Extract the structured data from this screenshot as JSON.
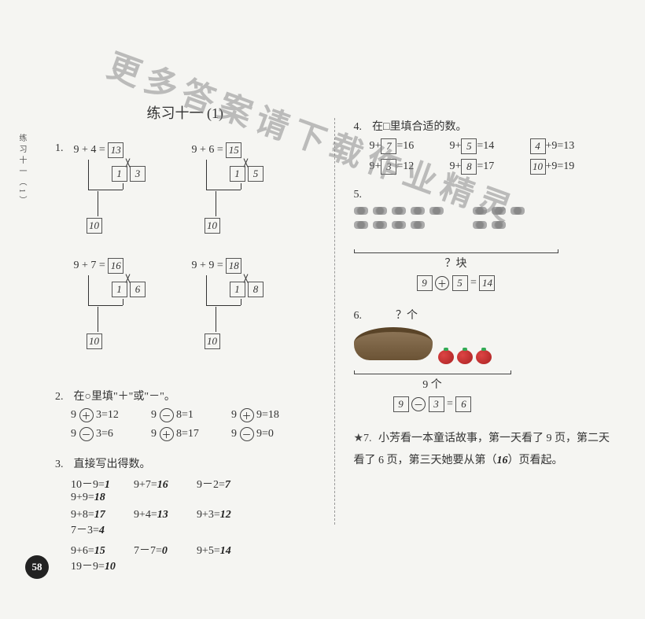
{
  "watermark": "更多答案请下载作业精灵",
  "sideLabel": "练习十一（1）",
  "title": "练习十一 (1)",
  "pageNum": "58",
  "q1": {
    "num": "1.",
    "trees": [
      {
        "expr": "9  +  4 =",
        "result": "13",
        "s1": "1",
        "s2": "3",
        "bot": "10"
      },
      {
        "expr": "9  +  6 =",
        "result": "15",
        "s1": "1",
        "s2": "5",
        "bot": "10"
      },
      {
        "expr": "9  +  7 =",
        "result": "16",
        "s1": "1",
        "s2": "6",
        "bot": "10"
      },
      {
        "expr": "9  +  9 =",
        "result": "18",
        "s1": "1",
        "s2": "8",
        "bot": "10"
      }
    ]
  },
  "q2": {
    "num": "2.",
    "prompt": "在○里填\"＋\"或\"－\"。",
    "rows": [
      [
        {
          "a": "9",
          "op": "＋",
          "b": "3=12"
        },
        {
          "a": "9",
          "op": "－",
          "b": "8=1"
        },
        {
          "a": "9",
          "op": "＋",
          "b": "9=18"
        }
      ],
      [
        {
          "a": "9",
          "op": "－",
          "b": "3=6"
        },
        {
          "a": "9",
          "op": "＋",
          "b": "8=17"
        },
        {
          "a": "9",
          "op": "－",
          "b": "9=0"
        }
      ]
    ]
  },
  "q3": {
    "num": "3.",
    "prompt": "直接写出得数。",
    "rows": [
      [
        {
          "e": "10－9=",
          "a": "1"
        },
        {
          "e": "9+7=",
          "a": "16"
        },
        {
          "e": "9－2=",
          "a": "7"
        },
        {
          "e": "9+9=",
          "a": "18"
        }
      ],
      [
        {
          "e": "9+8=",
          "a": "17"
        },
        {
          "e": "9+4=",
          "a": "13"
        },
        {
          "e": "9+3=",
          "a": "12"
        },
        {
          "e": "7－3=",
          "a": "4"
        }
      ],
      [
        {
          "e": "9+6=",
          "a": "15"
        },
        {
          "e": "7－7=",
          "a": "0"
        },
        {
          "e": "9+5=",
          "a": "14"
        },
        {
          "e": "19－9=",
          "a": "10"
        }
      ]
    ]
  },
  "q4": {
    "num": "4.",
    "prompt": "在□里填合适的数。",
    "rows": [
      [
        {
          "pre": "9+",
          "box": "7",
          "post": "=16"
        },
        {
          "pre": "9+",
          "box": "5",
          "post": "=14"
        },
        {
          "preBox": "4",
          "post": "+9=13"
        }
      ],
      [
        {
          "pre": "9+",
          "box": "3",
          "post": "=12"
        },
        {
          "pre": "9+",
          "box": "8",
          "post": "=17"
        },
        {
          "preBox": "10",
          "post": "+9=19"
        }
      ]
    ]
  },
  "q5": {
    "num": "5.",
    "qmark": "？块",
    "eq": {
      "a": "9",
      "op": "＋",
      "b": "5",
      "r": "14"
    }
  },
  "q6": {
    "num": "6.",
    "qmark": "？个",
    "total": "9 个",
    "eq": {
      "a": "9",
      "op": "－",
      "b": "3",
      "r": "6"
    }
  },
  "q7": {
    "num": "★7.",
    "text1": "小芳看一本童话故事，第一天看了 9 页，第二天看了 6 页，第三天她要从第（",
    "ans": "16",
    "text2": "）页看起。"
  }
}
